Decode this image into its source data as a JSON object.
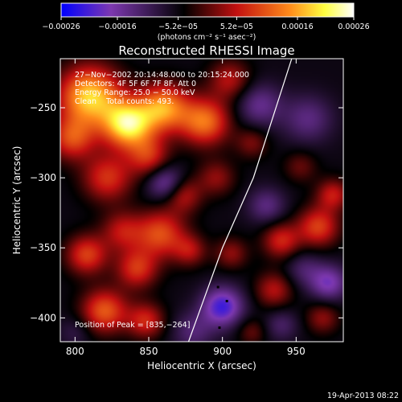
{
  "chart_data": {
    "type": "heatmap",
    "title": "Reconstructed RHESSI Image",
    "xlabel": "Heliocentric X (arcsec)",
    "ylabel": "Heliocentric Y (arcsec)",
    "xlim": [
      790,
      982
    ],
    "ylim": [
      -417,
      -215
    ],
    "x_ticks": [
      800,
      850,
      900,
      950
    ],
    "y_ticks": [
      -250,
      -300,
      -350,
      -400
    ],
    "x_tick_labels": [
      "800",
      "850",
      "900",
      "950"
    ],
    "y_tick_labels": [
      "−250",
      "−300",
      "−350",
      "−400"
    ],
    "colorbar": {
      "range": [
        -0.00026,
        0.00026
      ],
      "tick_labels": [
        "−0.00026",
        "−0.00016",
        "−5.2e−05",
        "5.2e−05",
        "0.00016",
        "0.00026"
      ],
      "tick_values": [
        -0.00026,
        -0.00016,
        -5.2e-05,
        5.2e-05,
        0.00016,
        0.00026
      ],
      "unit_label": "(photons cm⁻² s⁻¹ asec⁻²)",
      "colormap": [
        "#0000ff",
        "#7d38b0",
        "#000000",
        "#c21010",
        "#ff8a1a",
        "#ffff40",
        "#ffffff"
      ]
    },
    "annotations": {
      "time": "27−Nov−2002 20:14:48.000 to 20:15:24.000",
      "detectors": "Detectors: 4F 5F 6F 7F 8F, Att 0",
      "energy": "Energy Range: 25.0 − 50.0 keV",
      "method": "Clean    Total counts: 493.",
      "peak": "Position of Peak = [835,−264]"
    },
    "limb": [
      {
        "x": 877,
        "y": -417
      },
      {
        "x": 900,
        "y": -350
      },
      {
        "x": 921,
        "y": -300
      },
      {
        "x": 947,
        "y": -215
      }
    ],
    "blobs": [
      {
        "x": 810,
        "y": -242,
        "v": 0.00024,
        "s": 15
      },
      {
        "x": 836,
        "y": -262,
        "v": 0.00026,
        "s": 12
      },
      {
        "x": 860,
        "y": -250,
        "v": 0.0002,
        "s": 12
      },
      {
        "x": 798,
        "y": -272,
        "v": 0.00014,
        "s": 11
      },
      {
        "x": 822,
        "y": -300,
        "v": 0.00013,
        "s": 12
      },
      {
        "x": 850,
        "y": -285,
        "v": 0.00012,
        "s": 10
      },
      {
        "x": 888,
        "y": -260,
        "v": 0.00018,
        "s": 12
      },
      {
        "x": 905,
        "y": -230,
        "v": 0.0001,
        "s": 10
      },
      {
        "x": 896,
        "y": -300,
        "v": 8e-05,
        "s": 9
      },
      {
        "x": 873,
        "y": -312,
        "v": 0.00011,
        "s": 9
      },
      {
        "x": 858,
        "y": -340,
        "v": 0.00015,
        "s": 12
      },
      {
        "x": 832,
        "y": -338,
        "v": 0.0001,
        "s": 10
      },
      {
        "x": 808,
        "y": -355,
        "v": 0.00014,
        "s": 10
      },
      {
        "x": 842,
        "y": -365,
        "v": 0.00013,
        "s": 10
      },
      {
        "x": 820,
        "y": -395,
        "v": 0.00016,
        "s": 11
      },
      {
        "x": 848,
        "y": -402,
        "v": 0.00012,
        "s": 9
      },
      {
        "x": 878,
        "y": -352,
        "v": 9e-05,
        "s": 8
      },
      {
        "x": 906,
        "y": -354,
        "v": 8e-05,
        "s": 8
      },
      {
        "x": 920,
        "y": -275,
        "v": 7e-05,
        "s": 8
      },
      {
        "x": 953,
        "y": -292,
        "v": 6e-05,
        "s": 8
      },
      {
        "x": 940,
        "y": -345,
        "v": 0.00012,
        "s": 9
      },
      {
        "x": 965,
        "y": -335,
        "v": 0.00014,
        "s": 10
      },
      {
        "x": 975,
        "y": -312,
        "v": 0.00011,
        "s": 8
      },
      {
        "x": 935,
        "y": -380,
        "v": 0.0001,
        "s": 9
      },
      {
        "x": 968,
        "y": -400,
        "v": 8e-05,
        "s": 8
      },
      {
        "x": 920,
        "y": -410,
        "v": 6e-05,
        "s": 7
      },
      {
        "x": 862,
        "y": -304,
        "v": -0.00012,
        "s": 9
      },
      {
        "x": 900,
        "y": -392,
        "v": -0.00016,
        "s": 10
      },
      {
        "x": 925,
        "y": -248,
        "v": -9e-05,
        "s": 11
      },
      {
        "x": 958,
        "y": -258,
        "v": -8e-05,
        "s": 12
      },
      {
        "x": 930,
        "y": -320,
        "v": -8e-05,
        "s": 9
      },
      {
        "x": 972,
        "y": -375,
        "v": -0.00012,
        "s": 9
      },
      {
        "x": 955,
        "y": -365,
        "v": -6e-05,
        "s": 9
      },
      {
        "x": 800,
        "y": -410,
        "v": -4e-05,
        "s": 8
      },
      {
        "x": 880,
        "y": -410,
        "v": -7e-05,
        "s": 10
      },
      {
        "x": 940,
        "y": -405,
        "v": -6e-05,
        "s": 8
      }
    ],
    "baseline": -5.5e-05
  },
  "footer": {
    "timestamp": "19-Apr-2013 08:22"
  }
}
